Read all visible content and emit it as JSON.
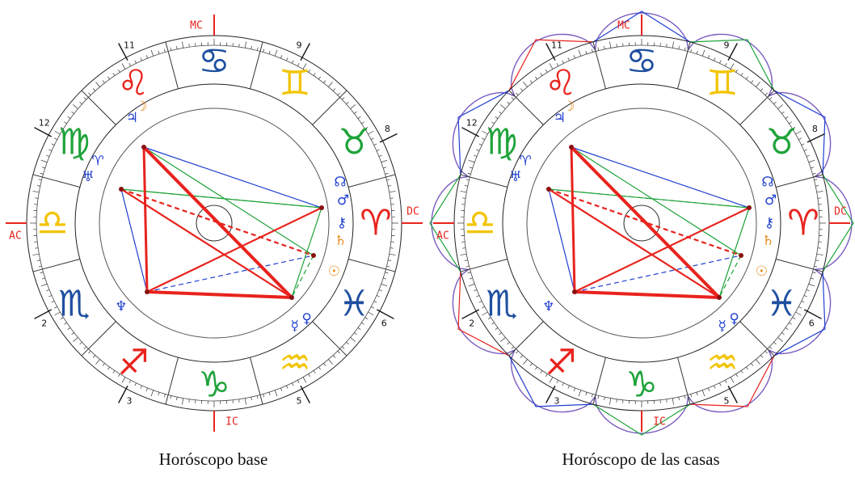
{
  "angles": {
    "mc": "MC",
    "ic": "IC",
    "ac": "AC",
    "dc": "DC"
  },
  "house_numbers": [
    {
      "key": "h2",
      "label": "2"
    },
    {
      "key": "h3",
      "label": "3"
    },
    {
      "key": "h5",
      "label": "5"
    },
    {
      "key": "h6",
      "label": "6"
    },
    {
      "key": "h8",
      "label": "8"
    },
    {
      "key": "h9",
      "label": "9"
    },
    {
      "key": "h11",
      "label": "11"
    },
    {
      "key": "h12",
      "label": "12"
    }
  ],
  "signs": [
    {
      "name": "cancer",
      "glyph": "♋",
      "color": "#1f4fa0"
    },
    {
      "name": "gemini",
      "glyph": "♊",
      "color": "#f2c400"
    },
    {
      "name": "leo",
      "glyph": "♌",
      "color": "#e8231d"
    },
    {
      "name": "taurus",
      "glyph": "♉",
      "color": "#1fa33a"
    },
    {
      "name": "virgo",
      "glyph": "♍",
      "color": "#1fa33a"
    },
    {
      "name": "aries",
      "glyph": "♈",
      "color": "#e8231d"
    },
    {
      "name": "libra",
      "glyph": "♎",
      "color": "#f2c400"
    },
    {
      "name": "pisces",
      "glyph": "♓",
      "color": "#1f4fa0"
    },
    {
      "name": "scorpio",
      "glyph": "♏",
      "color": "#1f4fa0"
    },
    {
      "name": "sagittarius",
      "glyph": "♐",
      "color": "#e8231d"
    },
    {
      "name": "capricorn",
      "glyph": "♑",
      "color": "#1fa33a"
    },
    {
      "name": "aquarius",
      "glyph": "♒",
      "color": "#f2c400"
    }
  ],
  "planets": [
    {
      "name": "jupiter",
      "glyph": "♃",
      "color": "#1f3fd0"
    },
    {
      "name": "moon",
      "glyph": "☽",
      "color": "#e88a1d"
    },
    {
      "name": "uranus",
      "glyph": "♅",
      "color": "#1f3fd0"
    },
    {
      "name": "aries-point",
      "glyph": "♈",
      "color": "#1f3fd0"
    },
    {
      "name": "node",
      "glyph": "☊",
      "color": "#1f3fd0"
    },
    {
      "name": "mars",
      "glyph": "♂",
      "color": "#1f3fd0"
    },
    {
      "name": "chiron",
      "glyph": "⚷",
      "color": "#1f3fd0"
    },
    {
      "name": "saturn",
      "glyph": "♄",
      "color": "#e88a1d"
    },
    {
      "name": "sun",
      "glyph": "☉",
      "color": "#e88a1d"
    },
    {
      "name": "neptune",
      "glyph": "♆",
      "color": "#1f3fd0"
    },
    {
      "name": "mercury",
      "glyph": "☿",
      "color": "#1f3fd0"
    },
    {
      "name": "venus",
      "glyph": "♀",
      "color": "#1f3fd0"
    }
  ],
  "colors": {
    "angle": "#e8231d",
    "red": "#e8231d",
    "green": "#1fa33a",
    "blue": "#1f3fd0",
    "orange": "#e88a1d"
  },
  "captions": {
    "left": "Horóscopo base",
    "right": "Horóscopo de las casas"
  }
}
